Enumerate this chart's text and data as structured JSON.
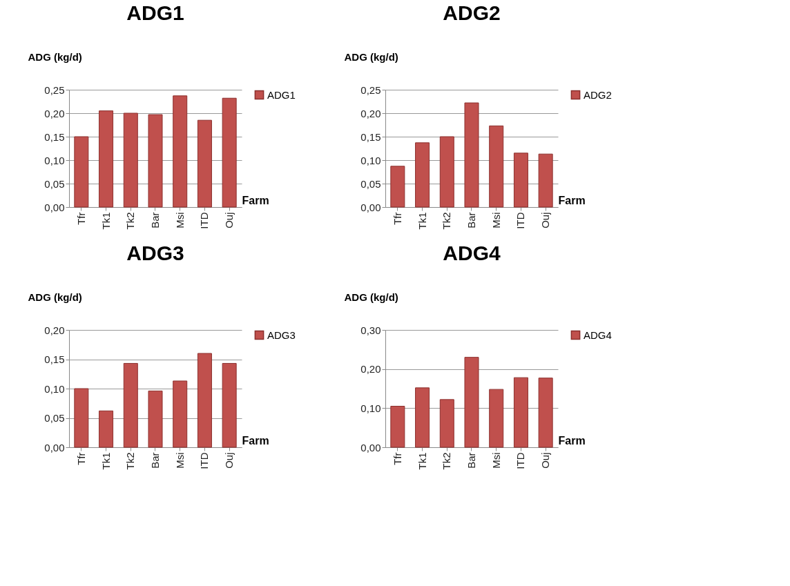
{
  "chart_data": [
    {
      "type": "bar",
      "title": "ADG1",
      "xlabel": "Farm",
      "ylabel": "ADG (kg/d)",
      "categories": [
        "Tfr",
        "Tk1",
        "Tk2",
        "Bar",
        "Msi",
        "ITD",
        "Ouj"
      ],
      "series": [
        {
          "name": "ADG1",
          "color": "#c0504d",
          "values": [
            0.15,
            0.205,
            0.2,
            0.197,
            0.237,
            0.185,
            0.232
          ]
        }
      ],
      "ylim": [
        0,
        0.25
      ],
      "yticks": [
        {
          "value": 0,
          "label": "0,00"
        },
        {
          "value": 0.05,
          "label": "0,05"
        },
        {
          "value": 0.1,
          "label": "0,10"
        },
        {
          "value": 0.15,
          "label": "0,15"
        },
        {
          "value": 0.2,
          "label": "0,20"
        },
        {
          "value": 0.25,
          "label": "0,25"
        }
      ],
      "grid": "y",
      "legend": "right"
    },
    {
      "type": "bar",
      "title": "ADG2",
      "xlabel": "Farm",
      "ylabel": "ADG (kg/d)",
      "categories": [
        "Tfr",
        "Tk1",
        "Tk2",
        "Bar",
        "Msi",
        "ITD",
        "Ouj"
      ],
      "series": [
        {
          "name": "ADG2",
          "color": "#c0504d",
          "values": [
            0.087,
            0.137,
            0.15,
            0.222,
            0.173,
            0.115,
            0.113
          ]
        }
      ],
      "ylim": [
        0,
        0.25
      ],
      "yticks": [
        {
          "value": 0,
          "label": "0,00"
        },
        {
          "value": 0.05,
          "label": "0,05"
        },
        {
          "value": 0.1,
          "label": "0,10"
        },
        {
          "value": 0.15,
          "label": "0,15"
        },
        {
          "value": 0.2,
          "label": "0,20"
        },
        {
          "value": 0.25,
          "label": "0,25"
        }
      ],
      "grid": "y",
      "legend": "right"
    },
    {
      "type": "bar",
      "title": "ADG3",
      "xlabel": "Farm",
      "ylabel": "ADG (kg/d)",
      "categories": [
        "Tfr",
        "Tk1",
        "Tk2",
        "Bar",
        "Msi",
        "ITD",
        "Ouj"
      ],
      "series": [
        {
          "name": "ADG3",
          "color": "#c0504d",
          "values": [
            0.1,
            0.062,
            0.143,
            0.096,
            0.113,
            0.16,
            0.143
          ]
        }
      ],
      "ylim": [
        0,
        0.2
      ],
      "yticks": [
        {
          "value": 0,
          "label": "0,00"
        },
        {
          "value": 0.05,
          "label": "0,05"
        },
        {
          "value": 0.1,
          "label": "0,10"
        },
        {
          "value": 0.15,
          "label": "0,15"
        },
        {
          "value": 0.2,
          "label": "0,20"
        }
      ],
      "grid": "y",
      "legend": "right"
    },
    {
      "type": "bar",
      "title": "ADG4",
      "xlabel": "Farm",
      "ylabel": "ADG (kg/d)",
      "categories": [
        "Tfr",
        "Tk1",
        "Tk2",
        "Bar",
        "Msi",
        "ITD",
        "Ouj"
      ],
      "series": [
        {
          "name": "ADG4",
          "color": "#c0504d",
          "values": [
            0.105,
            0.152,
            0.122,
            0.23,
            0.148,
            0.178,
            0.177
          ]
        }
      ],
      "ylim": [
        0,
        0.3
      ],
      "yticks": [
        {
          "value": 0,
          "label": "0,00"
        },
        {
          "value": 0.1,
          "label": "0,10"
        },
        {
          "value": 0.2,
          "label": "0,20"
        },
        {
          "value": 0.3,
          "label": "0,30"
        }
      ],
      "grid": "y",
      "legend": "right"
    }
  ]
}
